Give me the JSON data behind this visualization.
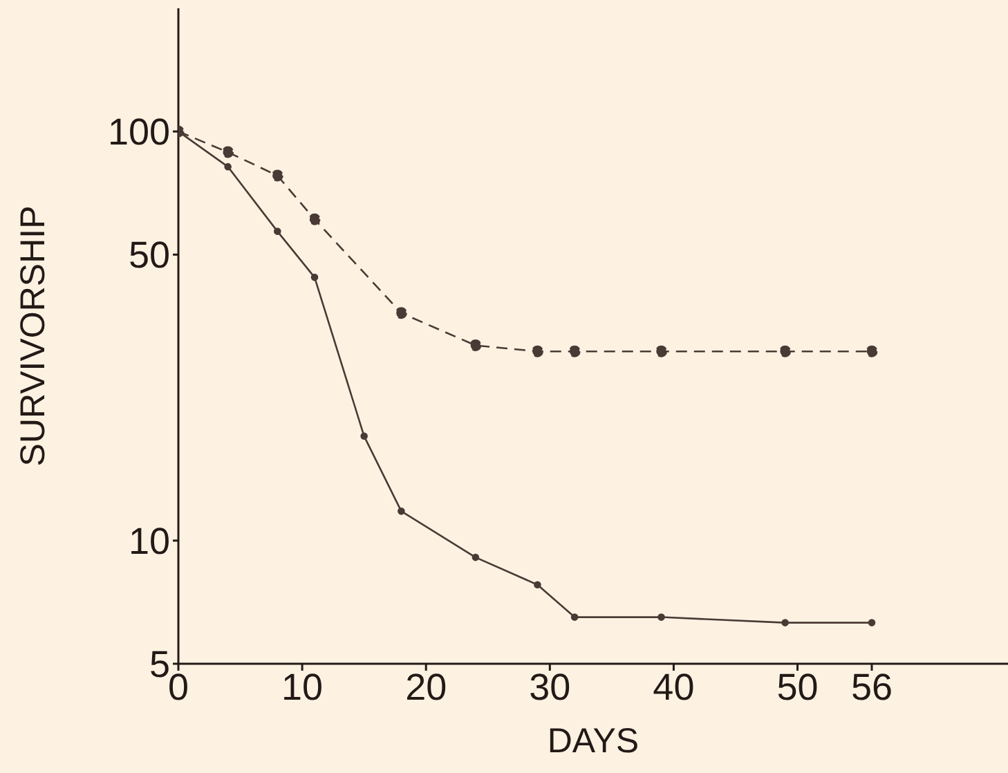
{
  "chart_data": {
    "type": "line",
    "xlabel": "DAYS",
    "ylabel": "SURVIVORSHIP",
    "log": "y",
    "xlim": [
      0,
      67
    ],
    "xticks": [
      0,
      10,
      20,
      30,
      40,
      50,
      56
    ],
    "ylim": [
      5,
      200
    ],
    "yticks": [
      5,
      10,
      50,
      100
    ],
    "grid": false,
    "legend": false,
    "marker": "circle",
    "series": [
      {
        "color": "#4a3a35",
        "line_style": "dashed",
        "x": [
          0,
          4,
          8,
          11,
          18,
          24,
          29,
          32,
          39,
          49,
          56
        ],
        "values": [
          100,
          89,
          78,
          61,
          36,
          30,
          29,
          29,
          29,
          29,
          29
        ]
      },
      {
        "color": "#4a3a35",
        "line_style": "solid",
        "x": [
          0,
          4,
          8,
          11,
          15,
          18,
          24,
          29,
          32,
          39,
          49,
          56
        ],
        "values": [
          100,
          82,
          57,
          44,
          18,
          11.8,
          9.1,
          7.8,
          6.5,
          6.5,
          6.3,
          6.3
        ]
      }
    ]
  }
}
